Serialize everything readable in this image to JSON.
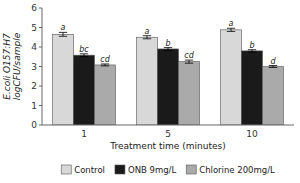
{
  "chart_data": {
    "type": "bar",
    "categories": [
      "1",
      "5",
      "10"
    ],
    "xlabel": "Treatment time (minutes)",
    "ylabel": "E.coli O157:H7\nlogCFU/sample",
    "ylim": [
      0,
      6
    ],
    "yticks": [
      0,
      1,
      2,
      3,
      4,
      5,
      6
    ],
    "grid": false,
    "legend": "bottom",
    "series": [
      {
        "name": "Control",
        "color": "#d8d8d8",
        "values": [
          4.65,
          4.5,
          4.88
        ],
        "errors": [
          0.1,
          0.08,
          0.08
        ],
        "letters": [
          "a",
          "a",
          "a"
        ]
      },
      {
        "name": "ONB 9mg/L",
        "color": "#1a1a1a",
        "values": [
          3.58,
          3.9,
          3.8
        ],
        "errors": [
          0.07,
          0.07,
          0.06
        ],
        "letters": [
          "bc",
          "b",
          "b"
        ]
      },
      {
        "name": "Chlorine 200mg/L",
        "color": "#aaaaaa",
        "values": [
          3.08,
          3.25,
          3.0
        ],
        "errors": [
          0.05,
          0.08,
          0.05
        ],
        "letters": [
          "cd",
          "cd",
          "d"
        ]
      }
    ]
  }
}
